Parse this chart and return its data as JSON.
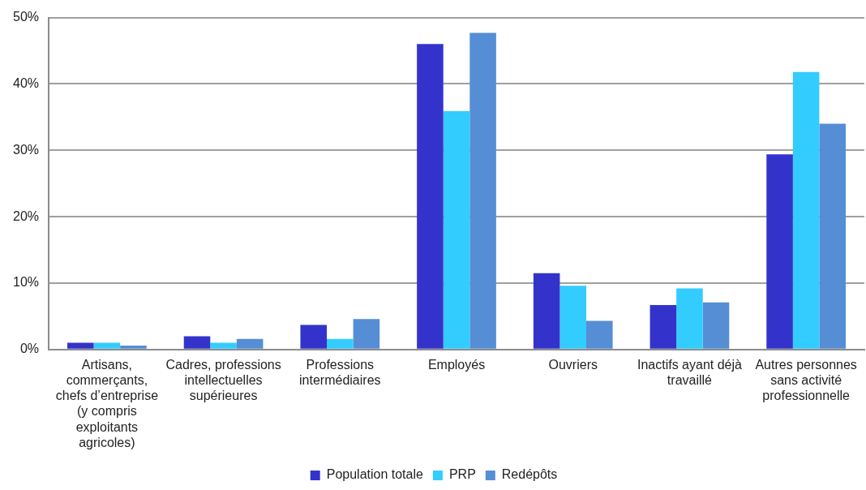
{
  "chart_data": {
    "type": "bar",
    "categories": [
      "Artisans, commerçants, chefs d’entreprise (y compris exploitants agricoles)",
      "Cadres, professions intellectuelles supérieures",
      "Professions intermédiaires",
      "Employés",
      "Ouvriers",
      "Inactifs ayant déjà travaillé",
      "Autres personnes sans activité professionnelle"
    ],
    "series": [
      {
        "name": "Population totale",
        "color": "#3333cc",
        "values": [
          1.0,
          2.0,
          3.7,
          46.0,
          11.5,
          6.7,
          29.4
        ]
      },
      {
        "name": "PRP",
        "color": "#33ccff",
        "values": [
          1.0,
          1.0,
          1.6,
          35.9,
          9.6,
          9.2,
          41.8
        ]
      },
      {
        "name": "Redépôts",
        "color": "#558ed5",
        "values": [
          0.6,
          1.6,
          4.6,
          47.7,
          4.3,
          7.1,
          34.0
        ]
      }
    ],
    "ylim": [
      0,
      50
    ],
    "yticks": [
      {
        "value": 0,
        "label": "0%"
      },
      {
        "value": 10,
        "label": "10%"
      },
      {
        "value": 20,
        "label": "20%"
      },
      {
        "value": 30,
        "label": "30%"
      },
      {
        "value": 40,
        "label": "40%"
      },
      {
        "value": 50,
        "label": "50%"
      }
    ],
    "grid": "y",
    "legend": "bottom"
  }
}
